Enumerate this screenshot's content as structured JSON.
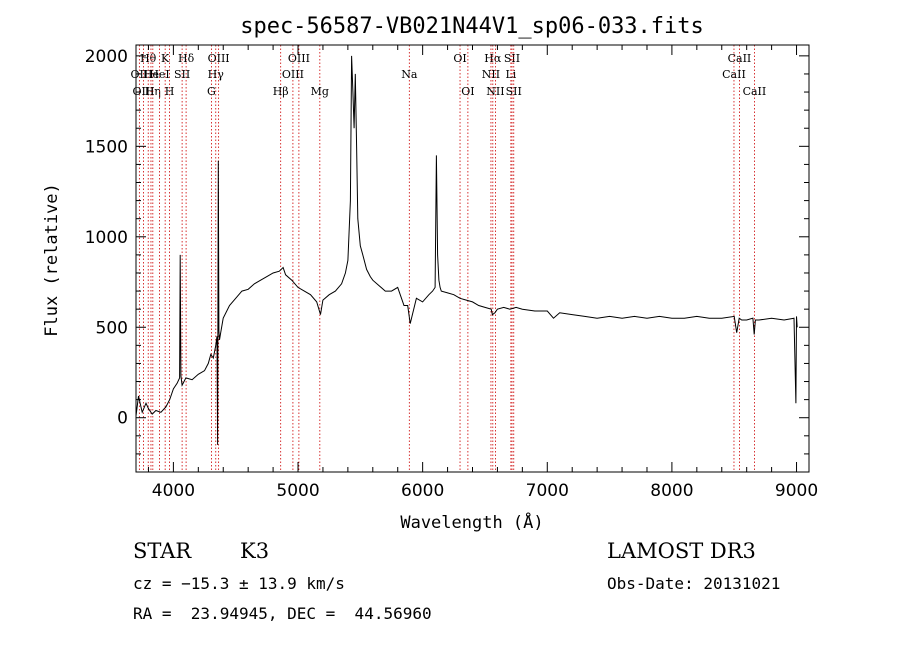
{
  "chart_data": {
    "type": "line",
    "title": "spec-56587-VB021N44V1_sp06-033.fits",
    "xlabel": "Wavelength (Å)",
    "ylabel": "Flux (relative)",
    "xlim": [
      3700,
      9100
    ],
    "ylim": [
      -300,
      2060
    ],
    "xticks": [
      4000,
      5000,
      6000,
      7000,
      8000,
      9000
    ],
    "yticks": [
      0,
      500,
      1000,
      1500,
      2000
    ],
    "spectrum": {
      "x": [
        3700,
        3720,
        3750,
        3780,
        3800,
        3830,
        3860,
        3900,
        3940,
        3970,
        4000,
        4030,
        4050,
        4055,
        4060,
        4070,
        4100,
        4150,
        4200,
        4250,
        4280,
        4300,
        4320,
        4340,
        4350,
        4355,
        4360,
        4365,
        4370,
        4380,
        4400,
        4450,
        4500,
        4550,
        4600,
        4650,
        4700,
        4750,
        4800,
        4850,
        4880,
        4900,
        4950,
        5000,
        5050,
        5100,
        5150,
        5180,
        5200,
        5250,
        5300,
        5350,
        5380,
        5400,
        5420,
        5430,
        5440,
        5450,
        5460,
        5470,
        5480,
        5500,
        5520,
        5550,
        5580,
        5600,
        5650,
        5700,
        5750,
        5800,
        5850,
        5880,
        5900,
        5950,
        6000,
        6050,
        6080,
        6100,
        6110,
        6120,
        6130,
        6140,
        6150,
        6200,
        6250,
        6300,
        6350,
        6400,
        6450,
        6500,
        6550,
        6560,
        6580,
        6600,
        6650,
        6700,
        6750,
        6800,
        6900,
        7000,
        7050,
        7100,
        7200,
        7300,
        7400,
        7500,
        7600,
        7700,
        7800,
        7900,
        8000,
        8100,
        8200,
        8300,
        8400,
        8500,
        8520,
        8540,
        8560,
        8600,
        8650,
        8660,
        8670,
        8700,
        8800,
        8900,
        8980,
        8995,
        9000,
        9005
      ],
      "y": [
        10,
        120,
        30,
        80,
        50,
        20,
        40,
        30,
        60,
        100,
        160,
        190,
        220,
        900,
        230,
        180,
        220,
        210,
        240,
        260,
        300,
        350,
        330,
        400,
        450,
        -150,
        1420,
        480,
        430,
        470,
        550,
        620,
        660,
        700,
        710,
        740,
        760,
        780,
        800,
        810,
        830,
        790,
        760,
        720,
        700,
        680,
        640,
        570,
        650,
        680,
        700,
        740,
        800,
        870,
        1200,
        2000,
        1800,
        1600,
        1900,
        1500,
        1100,
        950,
        900,
        820,
        780,
        760,
        730,
        700,
        700,
        720,
        620,
        620,
        520,
        660,
        640,
        680,
        700,
        720,
        1450,
        900,
        760,
        720,
        700,
        690,
        680,
        660,
        650,
        640,
        620,
        610,
        600,
        570,
        580,
        600,
        610,
        600,
        610,
        600,
        590,
        590,
        550,
        580,
        570,
        560,
        550,
        560,
        550,
        560,
        550,
        560,
        550,
        550,
        560,
        550,
        550,
        560,
        470,
        550,
        540,
        540,
        550,
        460,
        540,
        540,
        550,
        540,
        550,
        80,
        560,
        500
      ]
    },
    "lines": [
      {
        "label": "Hθ",
        "x": 3798,
        "row": 1
      },
      {
        "label": "OII",
        "x": 3727,
        "row": 2
      },
      {
        "label": "OIII",
        "x": 3760,
        "row": 3
      },
      {
        "label": "He",
        "x": 3820,
        "row": 2
      },
      {
        "label": "Hη",
        "x": 3835,
        "row": 3
      },
      {
        "label": "K",
        "x": 3934,
        "row": 1
      },
      {
        "label": "H",
        "x": 3969,
        "row": 3
      },
      {
        "label": "HeI",
        "x": 3889,
        "row": 2
      },
      {
        "label": "SII",
        "x": 4070,
        "row": 2
      },
      {
        "label": "Hδ",
        "x": 4102,
        "row": 1
      },
      {
        "label": "OIII",
        "x": 4363,
        "row": 1
      },
      {
        "label": "Hγ",
        "x": 4340,
        "row": 2
      },
      {
        "label": "G",
        "x": 4305,
        "row": 3
      },
      {
        "label": "Hβ",
        "x": 4861,
        "row": 3
      },
      {
        "label": "OIII",
        "x": 5007,
        "row": 1
      },
      {
        "label": "OIII",
        "x": 4959,
        "row": 2
      },
      {
        "label": "Mg",
        "x": 5175,
        "row": 3
      },
      {
        "label": "Na",
        "x": 5893,
        "row": 2
      },
      {
        "label": "OI",
        "x": 6300,
        "row": 1
      },
      {
        "label": "OI",
        "x": 6363,
        "row": 3
      },
      {
        "label": "Hα",
        "x": 6563,
        "row": 1
      },
      {
        "label": "NII",
        "x": 6548,
        "row": 2
      },
      {
        "label": "NII",
        "x": 6584,
        "row": 3
      },
      {
        "label": "SII",
        "x": 6717,
        "row": 1
      },
      {
        "label": "Li",
        "x": 6708,
        "row": 2
      },
      {
        "label": "SII",
        "x": 6731,
        "row": 3
      },
      {
        "label": "CaII",
        "x": 8542,
        "row": 1
      },
      {
        "label": "CaII",
        "x": 8498,
        "row": 2
      },
      {
        "label": "CaII",
        "x": 8662,
        "row": 3
      }
    ]
  },
  "info": {
    "object_class": "STAR",
    "subclass": "K3",
    "survey": "LAMOST DR3",
    "cz": "cz = −15.3 ± 13.9 km/s",
    "obs_date": "Obs-Date: 20131021",
    "coords": "RA =  23.94945, DEC =  44.56960"
  },
  "colors": {
    "line_marker": "#cc0000",
    "spectrum": "#000000"
  }
}
